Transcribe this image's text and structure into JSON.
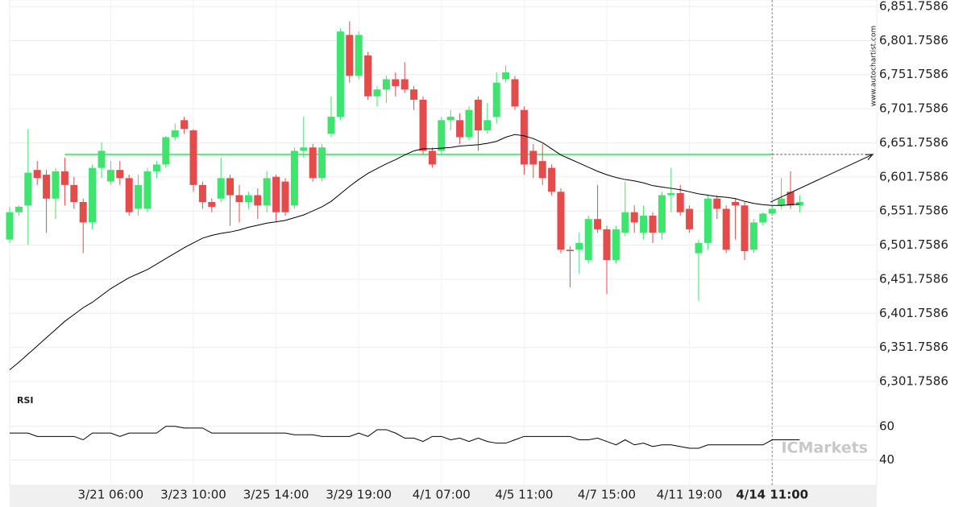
{
  "chart_data": [
    {
      "type": "candlestick",
      "watermark": "www.autochartist.com",
      "brand": "ICMarkets",
      "categories": [
        null,
        null,
        null,
        null,
        null,
        null,
        null,
        null,
        null,
        null,
        null,
        "3/21 06:00",
        null,
        null,
        null,
        null,
        null,
        null,
        null,
        null,
        "3/23 10:00",
        null,
        null,
        null,
        null,
        null,
        null,
        null,
        null,
        "3/25 14:00",
        null,
        null,
        null,
        null,
        null,
        null,
        null,
        null,
        "3/29 19:00",
        null,
        null,
        null,
        null,
        null,
        null,
        null,
        null,
        "4/1 07:00",
        null,
        null,
        null,
        null,
        null,
        null,
        null,
        null,
        "4/5 11:00",
        null,
        null,
        null,
        null,
        null,
        null,
        null,
        null,
        "4/7 15:00",
        null,
        null,
        null,
        null,
        null,
        null,
        null,
        null,
        "4/11 19:00",
        null,
        null,
        null,
        null,
        null,
        null,
        null,
        null,
        "4/14 11:00",
        null,
        null,
        null
      ],
      "open": [
        6510,
        6550,
        6560,
        6612,
        6605,
        6570,
        6610,
        6590,
        6565,
        6535,
        6615,
        6595,
        6612,
        6600,
        6555,
        6555,
        6610,
        6620,
        6660,
        6685,
        6670,
        6590,
        6565,
        6570,
        6600,
        6575,
        6565,
        6575,
        6560,
        6602,
        6595,
        6560,
        6640,
        6645,
        6600,
        6665,
        6690,
        6810,
        6750,
        6780,
        6720,
        6730,
        6745,
        6745,
        6730,
        6715,
        6640,
        6640,
        6685,
        6685,
        6660,
        6715,
        6670,
        6690,
        6745,
        6745,
        6700,
        6640,
        6625,
        6615,
        6580,
        6495,
        6495,
        6480,
        6540,
        6525,
        6480,
        6520,
        6550,
        6520,
        6545,
        6520,
        6575,
        6578,
        6555,
        6490,
        6505,
        6570,
        6555,
        6565,
        6560,
        6495,
        6535,
        6548,
        6560,
        6580,
        6560
      ],
      "high": [
        6558,
        6560,
        6672,
        6625,
        6612,
        6615,
        6630,
        6602,
        6570,
        6620,
        6652,
        6625,
        6625,
        6605,
        6605,
        6615,
        6625,
        6662,
        6680,
        6690,
        6672,
        6595,
        6570,
        6630,
        6605,
        6590,
        6580,
        6585,
        6610,
        6605,
        6600,
        6645,
        6690,
        6650,
        6650,
        6720,
        6820,
        6830,
        6815,
        6785,
        6735,
        6750,
        6755,
        6770,
        6735,
        6720,
        6645,
        6690,
        6700,
        6695,
        6705,
        6720,
        6710,
        6755,
        6765,
        6750,
        6705,
        6650,
        6650,
        6620,
        6585,
        6500,
        6520,
        6545,
        6590,
        6530,
        6530,
        6595,
        6560,
        6560,
        6550,
        6580,
        6615,
        6590,
        6560,
        6510,
        6575,
        6575,
        6560,
        6570,
        6565,
        6540,
        6550,
        6560,
        6600,
        6610,
        6575
      ],
      "low": [
        6505,
        6545,
        6502,
        6590,
        6520,
        6540,
        6560,
        6555,
        6490,
        6525,
        6600,
        6590,
        6590,
        6545,
        6545,
        6550,
        6600,
        6615,
        6655,
        6665,
        6580,
        6555,
        6550,
        6565,
        6530,
        6535,
        6555,
        6540,
        6550,
        6535,
        6545,
        6555,
        6630,
        6595,
        6595,
        6660,
        6685,
        6740,
        6745,
        6715,
        6705,
        6710,
        6720,
        6725,
        6700,
        6635,
        6615,
        6635,
        6670,
        6650,
        6655,
        6640,
        6665,
        6680,
        6740,
        6700,
        6605,
        6600,
        6590,
        6575,
        6490,
        6440,
        6460,
        6475,
        6520,
        6430,
        6475,
        6515,
        6520,
        6510,
        6505,
        6510,
        6550,
        6545,
        6520,
        6420,
        6495,
        6540,
        6490,
        6510,
        6480,
        6490,
        6530,
        6545,
        6555,
        6555,
        6550
      ],
      "close": [
        6550,
        6558,
        6608,
        6600,
        6570,
        6610,
        6590,
        6565,
        6535,
        6615,
        6640,
        6612,
        6600,
        6550,
        6590,
        6610,
        6620,
        6660,
        6670,
        6672,
        6590,
        6565,
        6558,
        6600,
        6575,
        6565,
        6575,
        6560,
        6600,
        6550,
        6550,
        6640,
        6645,
        6600,
        6645,
        6690,
        6815,
        6750,
        6810,
        6720,
        6730,
        6745,
        6735,
        6730,
        6715,
        6640,
        6620,
        6685,
        6690,
        6660,
        6700,
        6670,
        6685,
        6740,
        6755,
        6705,
        6620,
        6620,
        6600,
        6580,
        6495,
        6493,
        6505,
        6540,
        6525,
        6480,
        6525,
        6550,
        6535,
        6545,
        6520,
        6575,
        6578,
        6550,
        6525,
        6505,
        6570,
        6555,
        6495,
        6560,
        6493,
        6535,
        6548,
        6555,
        6570,
        6560,
        6565
      ],
      "up_color": "#3ee46e",
      "down_color": "#e44b4b",
      "moving_average": {
        "color": "#000000",
        "values": [
          6319,
          6330,
          6342,
          6354,
          6366,
          6378,
          6390,
          6400,
          6410,
          6418,
          6428,
          6438,
          6446,
          6454,
          6460,
          6466,
          6474,
          6482,
          6490,
          6498,
          6505,
          6512,
          6516,
          6519,
          6521,
          6524,
          6528,
          6531,
          6534,
          6536,
          6538,
          6542,
          6546,
          6552,
          6558,
          6566,
          6577,
          6588,
          6598,
          6607,
          6614,
          6621,
          6627,
          6634,
          6640,
          6643,
          6643,
          6644,
          6645,
          6647,
          6648,
          6649,
          6651,
          6654,
          6660,
          6664,
          6662,
          6658,
          6652,
          6643,
          6634,
          6628,
          6622,
          6616,
          6610,
          6605,
          6601,
          6598,
          6596,
          6593,
          6589,
          6587,
          6585,
          6583,
          6580,
          6577,
          6575,
          6573,
          6572,
          6570,
          6566,
          6563,
          6561,
          6560,
          6560,
          6561,
          6562
        ]
      },
      "level": {
        "value": 6634.8,
        "color": "#5ae87a"
      },
      "projection": {
        "start": 6565,
        "end": 6634.8,
        "color": "#222222"
      },
      "ylim": [
        6283,
        6861.2
      ],
      "yticks": [
        {
          "value": 6851.7586,
          "label": "6,851.7586"
        },
        {
          "value": 6801.7586,
          "label": "6,801.7586"
        },
        {
          "value": 6751.7586,
          "label": "6,751.7586"
        },
        {
          "value": 6701.7586,
          "label": "6,701.7586"
        },
        {
          "value": 6651.7586,
          "label": "6,651.7586"
        },
        {
          "value": 6601.7586,
          "label": "6,601.7586"
        },
        {
          "value": 6551.7586,
          "label": "6,551.7586"
        },
        {
          "value": 6501.7586,
          "label": "6,501.7586"
        },
        {
          "value": 6451.7586,
          "label": "6,451.7586"
        },
        {
          "value": 6401.7586,
          "label": "6,401.7586"
        },
        {
          "value": 6351.7586,
          "label": "6,351.7586"
        },
        {
          "value": 6301.7586,
          "label": "6,301.7586"
        }
      ],
      "grid": true
    },
    {
      "type": "line",
      "title": "RSI",
      "color": "#000000",
      "values": [
        56,
        56,
        56,
        54,
        54,
        54,
        54,
        54,
        52,
        56,
        56,
        56,
        54,
        56,
        56,
        56,
        56,
        60,
        60,
        59,
        59,
        59,
        56,
        56,
        56,
        56,
        56,
        56,
        56,
        56,
        56,
        55,
        55,
        55,
        54,
        54,
        54,
        54,
        56,
        54,
        58,
        58,
        56,
        53,
        53,
        51,
        54,
        54,
        52,
        53,
        51,
        53,
        51,
        50,
        50,
        52,
        54,
        54,
        54,
        54,
        54,
        54,
        52,
        52,
        53,
        51,
        49,
        52,
        49,
        50,
        48,
        49,
        49,
        48,
        47,
        47,
        49,
        49,
        49,
        49,
        49,
        49,
        49,
        52,
        52,
        52,
        52
      ],
      "ylim": [
        25,
        79
      ],
      "yticks": [
        40,
        60
      ],
      "grid": true
    }
  ]
}
